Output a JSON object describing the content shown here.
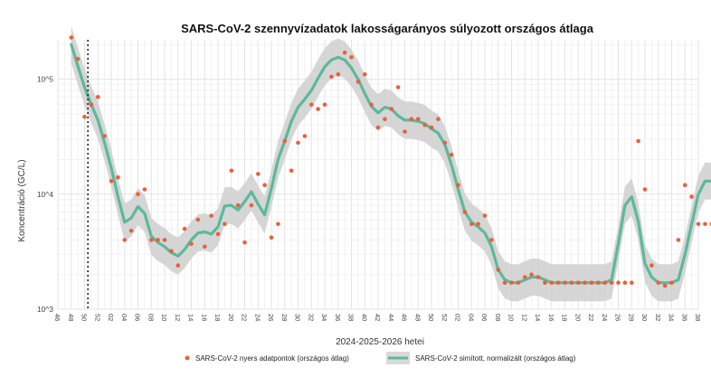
{
  "chart_data": {
    "type": "line",
    "title": "SARS-CoV-2 szennyvízadatok lakosságarányos súlyozott országos átlaga",
    "xlabel": "2024-2025-2026 hetei",
    "ylabel": "Koncentráció (GC/L)",
    "y_scale": "log10",
    "ylim": [
      1000,
      220000
    ],
    "y_ticks": [
      1000,
      10000,
      100000
    ],
    "y_tick_labels": [
      "10^3",
      "10^4",
      "10^5"
    ],
    "x_tick_labels": [
      "46",
      "48",
      "50",
      "52",
      "02",
      "04",
      "06",
      "08",
      "10",
      "12",
      "14",
      "16",
      "18",
      "20",
      "22",
      "24",
      "26",
      "28",
      "30",
      "32",
      "34",
      "36",
      "38",
      "40",
      "42",
      "44",
      "46",
      "48",
      "50",
      "52",
      "02",
      "04",
      "06",
      "08",
      "10",
      "12",
      "14",
      "16",
      "18",
      "20",
      "22",
      "24",
      "26",
      "28",
      "30",
      "32",
      "34",
      "36",
      "38"
    ],
    "vertical_marker_week": 2.5,
    "grid": true,
    "legend_position": "bottom",
    "colors": {
      "points": "#e8603c",
      "smooth": "#5bb99a",
      "band": "#cfcfcf",
      "marker": "#222222"
    },
    "series": [
      {
        "name": "SARS-CoV-2 nyers adatpontok (országos átlag)",
        "kind": "scatter",
        "x": [
          0,
          1,
          2,
          3,
          4,
          5,
          6,
          7,
          8,
          9,
          10,
          11,
          12,
          13,
          14,
          15,
          16,
          17,
          18,
          19,
          20,
          21,
          22,
          23,
          24,
          25,
          26,
          27,
          28,
          29,
          30,
          31,
          32,
          33,
          34,
          35,
          36,
          37,
          38,
          39,
          40,
          41,
          42,
          43,
          44,
          45,
          46,
          47,
          48,
          49,
          50,
          51,
          52,
          53,
          54,
          55,
          56,
          57,
          58,
          59,
          60,
          61,
          62,
          63,
          64,
          65,
          66,
          67,
          68,
          69,
          70,
          71,
          72,
          73,
          74,
          75,
          76,
          77,
          78,
          79,
          80,
          81,
          82,
          83,
          84,
          85,
          86,
          87,
          88,
          89,
          90,
          91,
          92,
          93,
          94,
          95,
          96
        ],
        "y": [
          230000,
          150000,
          47000,
          60000,
          70000,
          32000,
          13000,
          14000,
          4000,
          4800,
          10000,
          11000,
          4000,
          4000,
          4000,
          3200,
          2400,
          5000,
          3700,
          6000,
          3500,
          6500,
          4500,
          5500,
          16000,
          8000,
          3800,
          8000,
          15000,
          12000,
          4200,
          5500,
          29000,
          16000,
          28000,
          32000,
          60000,
          55000,
          60000,
          105000,
          110000,
          170000,
          155000,
          95000,
          110000,
          60000,
          38000,
          45000,
          55000,
          85000,
          35000,
          45000,
          45000,
          40000,
          38000,
          45000,
          28000,
          22000,
          12000,
          7000,
          5500,
          5500,
          6500,
          4000,
          2200,
          1700,
          1700,
          1700,
          1900,
          2000,
          1900,
          1700,
          1700,
          1700,
          1700,
          1700,
          1700,
          1700,
          1700,
          1700,
          1700,
          1700,
          1700,
          1700,
          1700,
          29000,
          11000,
          2400,
          1700,
          1600,
          1700,
          4000,
          12000,
          9500,
          5500,
          5500,
          5500
        ]
      },
      {
        "name": "SARS-CoV-2 simított, normalizált (országos átlag)",
        "kind": "line",
        "x": [
          0,
          1,
          2,
          3,
          4,
          5,
          6,
          7,
          8,
          9,
          10,
          11,
          12,
          13,
          14,
          15,
          16,
          17,
          18,
          19,
          20,
          21,
          22,
          23,
          24,
          25,
          26,
          27,
          28,
          29,
          30,
          31,
          32,
          33,
          34,
          35,
          36,
          37,
          38,
          39,
          40,
          41,
          42,
          43,
          44,
          45,
          46,
          47,
          48,
          49,
          50,
          51,
          52,
          53,
          54,
          55,
          56,
          57,
          58,
          59,
          60,
          61,
          62,
          63,
          64,
          65,
          66,
          67,
          68,
          69,
          70,
          71,
          72,
          73,
          74,
          75,
          76,
          77,
          78,
          79,
          80,
          81,
          82,
          83,
          84,
          85,
          86,
          87,
          88,
          89,
          90,
          91,
          92,
          93,
          94,
          95,
          96
        ],
        "y": [
          200000,
          130000,
          85000,
          60000,
          44000,
          28000,
          17000,
          9500,
          5700,
          6200,
          7800,
          6800,
          4300,
          3800,
          3500,
          3100,
          2900,
          3300,
          4000,
          4600,
          4700,
          4500,
          5200,
          7900,
          8000,
          7300,
          8600,
          10500,
          8200,
          6600,
          11200,
          20000,
          29000,
          43000,
          57000,
          67000,
          80000,
          102000,
          128000,
          147000,
          155000,
          147000,
          125000,
          100000,
          75000,
          58000,
          51000,
          57000,
          55000,
          48000,
          44000,
          44000,
          43000,
          41000,
          37000,
          34000,
          27000,
          18000,
          11000,
          7000,
          5700,
          5200,
          4600,
          3500,
          2200,
          1800,
          1700,
          1700,
          1800,
          1900,
          1900,
          1800,
          1700,
          1700,
          1700,
          1700,
          1700,
          1700,
          1700,
          1700,
          1700,
          1800,
          3700,
          8000,
          9500,
          5800,
          2500,
          1900,
          1700,
          1700,
          1700,
          1800,
          3000,
          5500,
          10000,
          13000,
          13000
        ]
      }
    ]
  }
}
